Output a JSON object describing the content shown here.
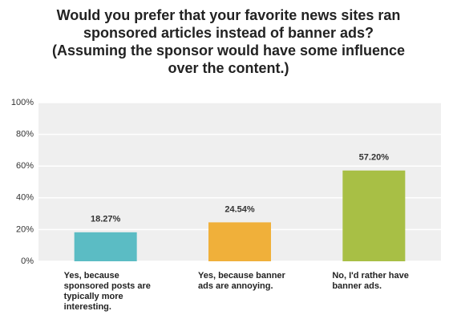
{
  "chart_data": {
    "type": "bar",
    "title": "Would you prefer that your favorite news sites ran sponsored articles instead of banner ads? (Assuming the sponsor would have some influence over the content.)",
    "categories": [
      "Yes, because sponsored posts are typically more interesting.",
      "Yes, because banner ads are annoying.",
      "No, I'd rather have banner ads."
    ],
    "values": [
      18.27,
      24.54,
      57.2
    ],
    "value_labels": [
      "18.27%",
      "24.54%",
      "57.20%"
    ],
    "colors": [
      "#5bbcc4",
      "#f0b03a",
      "#a8bf45"
    ],
    "ylim": [
      0,
      100
    ],
    "yticks": [
      {
        "value": 0,
        "label": "0%"
      },
      {
        "value": 20,
        "label": "20%"
      },
      {
        "value": 40,
        "label": "40%"
      },
      {
        "value": 60,
        "label": "60%"
      },
      {
        "value": 80,
        "label": "80%"
      },
      {
        "value": 100,
        "label": "100%"
      }
    ],
    "grid": true
  }
}
